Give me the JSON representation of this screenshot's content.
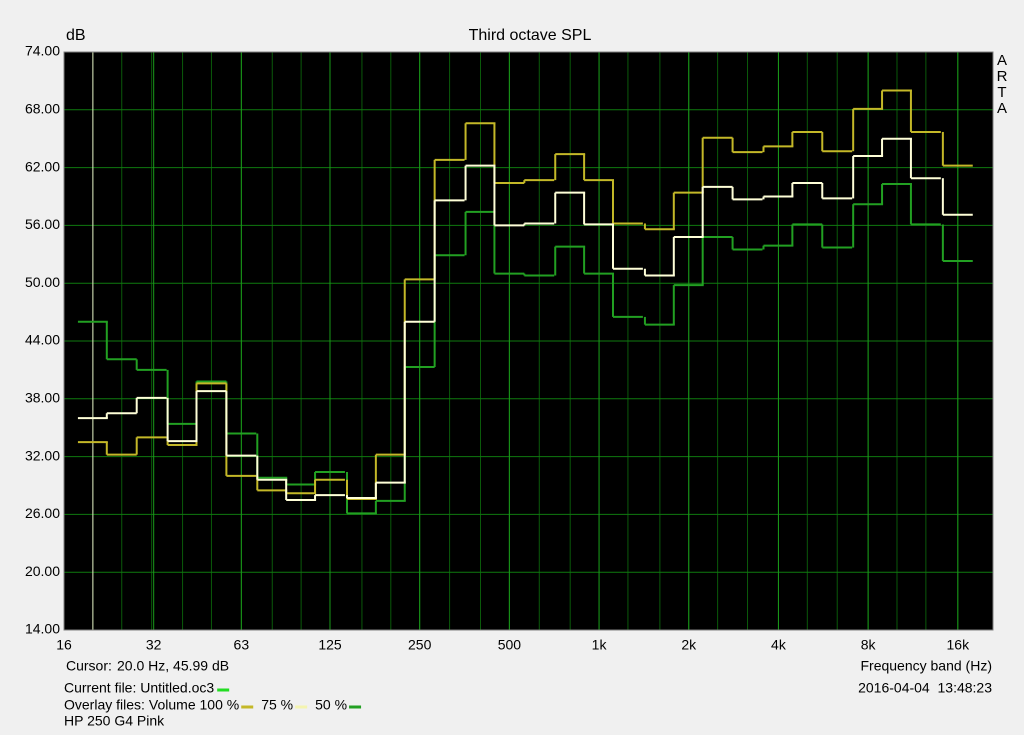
{
  "chart_data": {
    "type": "step",
    "title": "Third octave SPL",
    "y_label": "dB",
    "watermark": [
      "A",
      "R",
      "T",
      "A"
    ],
    "x_label": "Frequency band (Hz)",
    "log_x": true,
    "grid": true,
    "x": [
      20,
      25,
      31.5,
      40,
      50,
      63,
      80,
      100,
      125,
      160,
      200,
      250,
      315,
      400,
      500,
      630,
      800,
      1000,
      1250,
      1600,
      2000,
      2500,
      3150,
      4000,
      5000,
      6300,
      8000,
      10000,
      12500,
      16000
    ],
    "xlim": [
      16,
      21000
    ],
    "xticks": [
      16,
      32,
      63,
      125,
      250,
      500,
      {
        "value": 1000,
        "label": "1k"
      },
      {
        "value": 2000,
        "label": "2k"
      },
      {
        "value": 4000,
        "label": "4k"
      },
      {
        "value": 8000,
        "label": "8k"
      },
      {
        "value": 16000,
        "label": "16k"
      }
    ],
    "ylim": [
      14,
      74
    ],
    "yticks": [
      {
        "value": 14,
        "label": "14.00"
      },
      {
        "value": 20,
        "label": "20.00"
      },
      {
        "value": 26,
        "label": "26.00"
      },
      {
        "value": 32,
        "label": "32.00"
      },
      {
        "value": 38,
        "label": "38.00"
      },
      {
        "value": 44,
        "label": "44.00"
      },
      {
        "value": 50,
        "label": "50.00"
      },
      {
        "value": 56,
        "label": "56.00"
      },
      {
        "value": 62,
        "label": "62.00"
      },
      {
        "value": 68,
        "label": "68.00"
      },
      {
        "value": 74,
        "label": "74.00"
      }
    ],
    "series": [
      {
        "name": "50 %",
        "color": "#22a022",
        "values": [
          46.0,
          42.1,
          41.0,
          35.4,
          39.8,
          34.4,
          29.8,
          29.1,
          30.4,
          26.1,
          27.4,
          41.3,
          52.9,
          57.4,
          51.0,
          50.8,
          53.8,
          51.0,
          46.5,
          45.7,
          49.8,
          54.8,
          53.5,
          53.9,
          56.1,
          53.7,
          58.2,
          60.3,
          56.1,
          52.3
        ]
      },
      {
        "name": "Volume 100 %",
        "color": "#c4b828",
        "values": [
          33.5,
          32.2,
          34.0,
          33.2,
          39.6,
          30.0,
          28.5,
          28.2,
          29.6,
          27.6,
          32.2,
          50.4,
          62.8,
          66.6,
          60.4,
          60.7,
          63.4,
          60.7,
          56.2,
          55.6,
          59.4,
          65.1,
          63.6,
          64.2,
          65.7,
          63.7,
          68.1,
          70.0,
          65.7,
          62.2
        ]
      },
      {
        "name": "75 %",
        "color": "#ffffd8",
        "values": [
          36.0,
          36.5,
          38.1,
          33.6,
          38.8,
          32.1,
          29.6,
          27.5,
          28.0,
          27.7,
          29.3,
          46.0,
          58.6,
          62.2,
          56.0,
          56.2,
          59.4,
          56.1,
          51.5,
          50.8,
          54.8,
          60.0,
          58.7,
          59.0,
          60.4,
          58.8,
          63.2,
          65.0,
          60.9,
          57.1
        ]
      }
    ],
    "cursor": {
      "label": "Cursor:",
      "text": "20.0 Hz, 45.99 dB",
      "x": 20
    },
    "current_file": {
      "text": "Current file: Untitled.oc3",
      "color": "#22dd22"
    },
    "overlay_label": "Overlay files:",
    "legend_order": [
      1,
      2,
      0
    ],
    "timestamp": "2016-04-04  13:48:23",
    "note": "HP 250 G4 Pink"
  }
}
